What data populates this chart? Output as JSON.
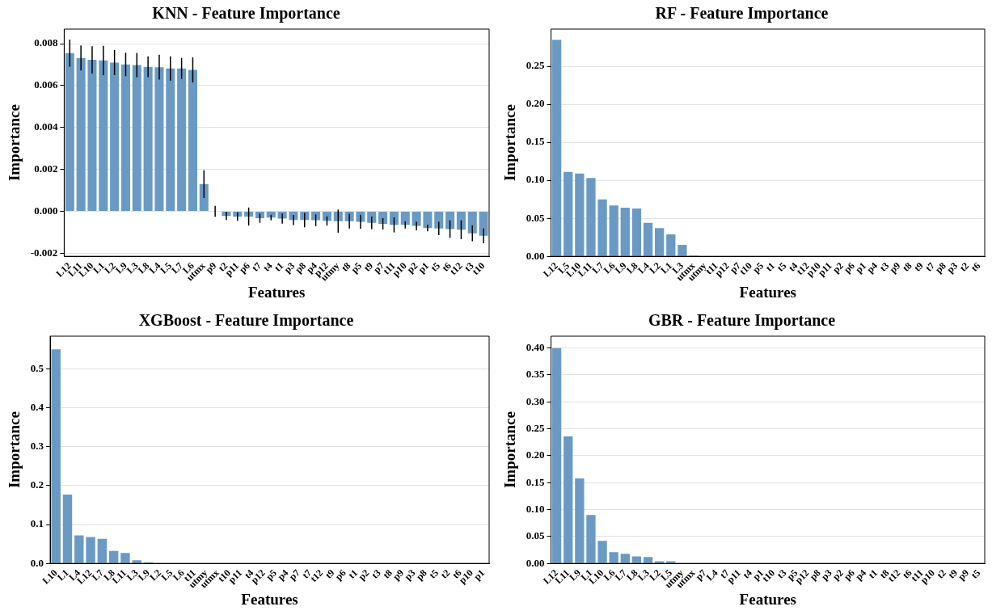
{
  "chart_data": [
    {
      "type": "bar",
      "title": "KNN - Feature Importance",
      "xlabel": "Features",
      "ylabel": "Importance",
      "color": "#6a9ac4",
      "grid": "y",
      "categories": [
        "L12",
        "L11",
        "L10",
        "L1",
        "L2",
        "L9",
        "L3",
        "L8",
        "L4",
        "L5",
        "L7",
        "L6",
        "utmx",
        "p9",
        "t2",
        "p11",
        "p6",
        "t7",
        "t4",
        "t1",
        "p3",
        "p8",
        "p4",
        "p12",
        "utmy",
        "t8",
        "p5",
        "t9",
        "p7",
        "t11",
        "p10",
        "p2",
        "p1",
        "t5",
        "t6",
        "t12",
        "t3",
        "t10"
      ],
      "values": [
        0.00755,
        0.00732,
        0.00723,
        0.0072,
        0.0071,
        0.00701,
        0.00698,
        0.0069,
        0.00688,
        0.00682,
        0.00682,
        0.00675,
        0.0013,
        0,
        -0.00022,
        -0.00025,
        -0.00025,
        -0.00033,
        -0.0003,
        -0.00035,
        -0.00042,
        -0.00042,
        -0.00043,
        -0.00046,
        -0.00047,
        -0.00047,
        -0.0005,
        -0.00055,
        -0.0006,
        -0.00065,
        -0.00065,
        -0.0007,
        -0.0008,
        -0.00082,
        -0.00085,
        -0.00088,
        -0.00105,
        -0.00117
      ],
      "errors": [
        0.00065,
        0.0006,
        0.00065,
        0.0007,
        0.0006,
        0.00056,
        0.00058,
        0.0005,
        0.00059,
        0.00058,
        0.0005,
        0.0006,
        0.00066,
        0.00026,
        0.0002,
        0.0002,
        0.00043,
        0.00022,
        0.00013,
        0.00024,
        0.00024,
        0.00034,
        0.00028,
        0.00022,
        0.00055,
        0.00035,
        0.00033,
        0.0003,
        0.00027,
        0.00036,
        0.00017,
        0.00021,
        0.00016,
        0.00032,
        0.00042,
        0.00045,
        0.00038,
        0.00036
      ],
      "ylim": [
        -0.00215,
        0.0087
      ],
      "yticks": [
        {
          "value": -0.002,
          "label": "-0.002"
        },
        {
          "value": 0,
          "label": "0.000"
        },
        {
          "value": 0.002,
          "label": "0.002"
        },
        {
          "value": 0.004,
          "label": "0.004"
        },
        {
          "value": 0.006,
          "label": "0.006"
        },
        {
          "value": 0.008,
          "label": "0.008"
        }
      ]
    },
    {
      "type": "bar",
      "title": "RF - Feature Importance",
      "xlabel": "Features",
      "ylabel": "Importance",
      "color": "#6a9ac4",
      "grid": "y",
      "categories": [
        "L12",
        "L5",
        "L10",
        "L11",
        "L7",
        "L6",
        "L9",
        "L8",
        "L4",
        "L2",
        "L1",
        "L3",
        "utmx",
        "utmy",
        "t11",
        "p12",
        "p7",
        "t10",
        "p5",
        "t1",
        "t5",
        "t4",
        "t12",
        "p10",
        "p11",
        "p2",
        "p6",
        "p1",
        "p4",
        "t3",
        "p9",
        "t8",
        "t9",
        "t7",
        "p8",
        "p3",
        "t2",
        "t6"
      ],
      "values": [
        0.285,
        0.111,
        0.109,
        0.103,
        0.075,
        0.067,
        0.064,
        0.063,
        0.044,
        0.037,
        0.029,
        0.015,
        0.001,
        0,
        0,
        0,
        0,
        0,
        0,
        0,
        0,
        0,
        0,
        0,
        0,
        0,
        0,
        0,
        0,
        0,
        0,
        0,
        0,
        0,
        0,
        0,
        0,
        0
      ],
      "ylim": [
        0,
        0.299
      ],
      "yticks": [
        {
          "value": 0,
          "label": "0.00"
        },
        {
          "value": 0.05,
          "label": "0.05"
        },
        {
          "value": 0.1,
          "label": "0.10"
        },
        {
          "value": 0.15,
          "label": "0.15"
        },
        {
          "value": 0.2,
          "label": "0.20"
        },
        {
          "value": 0.25,
          "label": "0.25"
        }
      ]
    },
    {
      "type": "bar",
      "title": "XGBoost - Feature Importance",
      "xlabel": "Features",
      "ylabel": "Importance",
      "color": "#6a9ac4",
      "grid": "y",
      "categories": [
        "L10",
        "L1",
        "L4",
        "L12",
        "L7",
        "L8",
        "L11",
        "L3",
        "L9",
        "L2",
        "L5",
        "L6",
        "t11",
        "utmy",
        "utmx",
        "t10",
        "p11",
        "t4",
        "p12",
        "p5",
        "p4",
        "p7",
        "t7",
        "t12",
        "t9",
        "p6",
        "t1",
        "p2",
        "t3",
        "t8",
        "p9",
        "p3",
        "p8",
        "t5",
        "t2",
        "t6",
        "p10",
        "p1"
      ],
      "values": [
        0.55,
        0.177,
        0.072,
        0.068,
        0.063,
        0.032,
        0.027,
        0.008,
        0.003,
        0.001,
        0,
        0,
        0,
        0,
        0,
        0,
        0,
        0,
        0,
        0,
        0,
        0,
        0,
        0,
        0,
        0,
        0,
        0,
        0,
        0,
        0,
        0,
        0,
        0,
        0,
        0,
        0,
        0
      ],
      "ylim": [
        0,
        0.584
      ],
      "yticks": [
        {
          "value": 0,
          "label": "0.0"
        },
        {
          "value": 0.1,
          "label": "0.1"
        },
        {
          "value": 0.2,
          "label": "0.2"
        },
        {
          "value": 0.3,
          "label": "0.3"
        },
        {
          "value": 0.4,
          "label": "0.4"
        },
        {
          "value": 0.5,
          "label": "0.5"
        }
      ]
    },
    {
      "type": "bar",
      "title": "GBR - Feature Importance",
      "xlabel": "Features",
      "ylabel": "Importance",
      "color": "#6a9ac4",
      "grid": "y",
      "categories": [
        "L12",
        "L11",
        "L9",
        "L1",
        "L10",
        "L6",
        "L7",
        "L8",
        "L3",
        "L2",
        "L5",
        "utmy",
        "utmx",
        "p7",
        "L4",
        "t7",
        "p11",
        "t4",
        "p1",
        "t10",
        "t3",
        "p5",
        "p12",
        "p8",
        "p3",
        "p2",
        "p6",
        "p4",
        "t1",
        "t8",
        "t12",
        "t6",
        "t11",
        "p10",
        "t2",
        "t9",
        "p9",
        "t5"
      ],
      "values": [
        0.4,
        0.236,
        0.158,
        0.09,
        0.042,
        0.021,
        0.018,
        0.013,
        0.012,
        0.004,
        0.004,
        0,
        0,
        0,
        0,
        0,
        0,
        0,
        0,
        0,
        0,
        0,
        0,
        0,
        0,
        0,
        0,
        0,
        0,
        0,
        0,
        0,
        0,
        0,
        0,
        0,
        0,
        0
      ],
      "ylim": [
        0,
        0.422
      ],
      "yticks": [
        {
          "value": 0,
          "label": "0.00"
        },
        {
          "value": 0.05,
          "label": "0.05"
        },
        {
          "value": 0.1,
          "label": "0.10"
        },
        {
          "value": 0.15,
          "label": "0.15"
        },
        {
          "value": 0.2,
          "label": "0.20"
        },
        {
          "value": 0.25,
          "label": "0.25"
        },
        {
          "value": 0.3,
          "label": "0.30"
        },
        {
          "value": 0.35,
          "label": "0.35"
        },
        {
          "value": 0.4,
          "label": "0.40"
        }
      ]
    }
  ]
}
